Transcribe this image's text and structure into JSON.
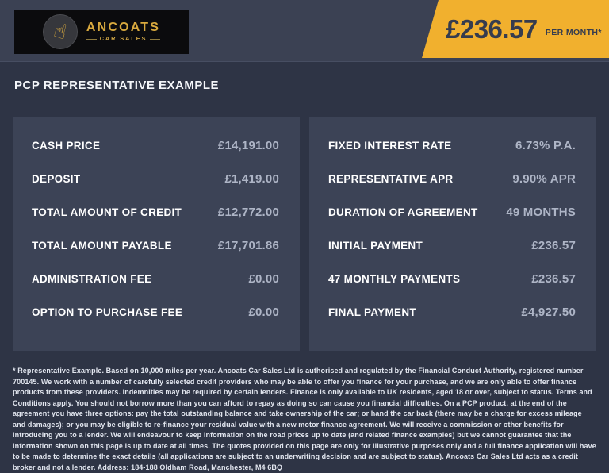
{
  "header": {
    "logo": {
      "brand": "ANCOATS",
      "tagline": "CAR SALES",
      "icon": "foam-finger-icon",
      "glyph": "☝"
    },
    "price_banner": {
      "amount": "£236.57",
      "period": "PER MONTH*"
    }
  },
  "title_bar": {
    "title": "PCP REPRESENTATIVE EXAMPLE"
  },
  "panels": {
    "left": {
      "rows": [
        {
          "label": "CASH PRICE",
          "value": "£14,191.00"
        },
        {
          "label": "DEPOSIT",
          "value": "£1,419.00"
        },
        {
          "label": "TOTAL AMOUNT OF CREDIT",
          "value": "£12,772.00"
        },
        {
          "label": "TOTAL AMOUNT PAYABLE",
          "value": "£17,701.86"
        },
        {
          "label": "ADMINISTRATION FEE",
          "value": "£0.00"
        },
        {
          "label": "OPTION TO PURCHASE FEE",
          "value": "£0.00"
        }
      ]
    },
    "right": {
      "rows": [
        {
          "label": "FIXED INTEREST RATE",
          "value": "6.73% P.A."
        },
        {
          "label": "REPRESENTATIVE APR",
          "value": "9.90% APR"
        },
        {
          "label": "DURATION OF AGREEMENT",
          "value": "49 MONTHS"
        },
        {
          "label": "INITIAL PAYMENT",
          "value": "£236.57"
        },
        {
          "label": "47 MONTHLY PAYMENTS",
          "value": "£236.57"
        },
        {
          "label": "FINAL PAYMENT",
          "value": "£4,927.50"
        }
      ]
    }
  },
  "footer": {
    "disclaimer": "* Representative Example. Based on 10,000 miles per year. Ancoats Car Sales Ltd is authorised and regulated by the Financial Conduct Authority, registered number 700145. We work with a number of carefully selected credit providers who may be able to offer you finance for your purchase, and we are only able to offer finance products from these providers. Indemnities may be required by certain lenders. Finance is only available to UK residents, aged 18 or over, subject to status. Terms and Conditions apply. You should not borrow more than you can afford to repay as doing so can cause you financial difficulties. On a PCP product, at the end of the agreement you have three options: pay the total outstanding balance and take ownership of the car; or hand the car back (there may be a charge for excess mileage and damages); or you may be eligible to re-finance your residual value with a new motor finance agreement. We will receive a commission or other benefits for introducing you to a lender. We will endeavour to keep information on the road prices up to date (and related finance examples) but we cannot guarantee that the information shown on this page is up to date at all times. The quotes provided on this page are only for illustrative purposes only and a full finance application will have to be made to determine the exact details (all applications are subject to an underwriting decision and are subject to status). Ancoats Car Sales Ltd acts as a credit broker and not a lender. Address: 184-188 Oldham Road, Manchester, M4 6BQ"
  },
  "colors": {
    "accent_yellow": "#f1b02e",
    "header_bg": "#3b4153",
    "body_bg": "#2e3445",
    "panel_bg": "#3c4356",
    "logo_gold": "#d8a93e",
    "label_text": "#ffffff",
    "value_text": "#aeb5c6",
    "banner_text": "#353c4e"
  }
}
